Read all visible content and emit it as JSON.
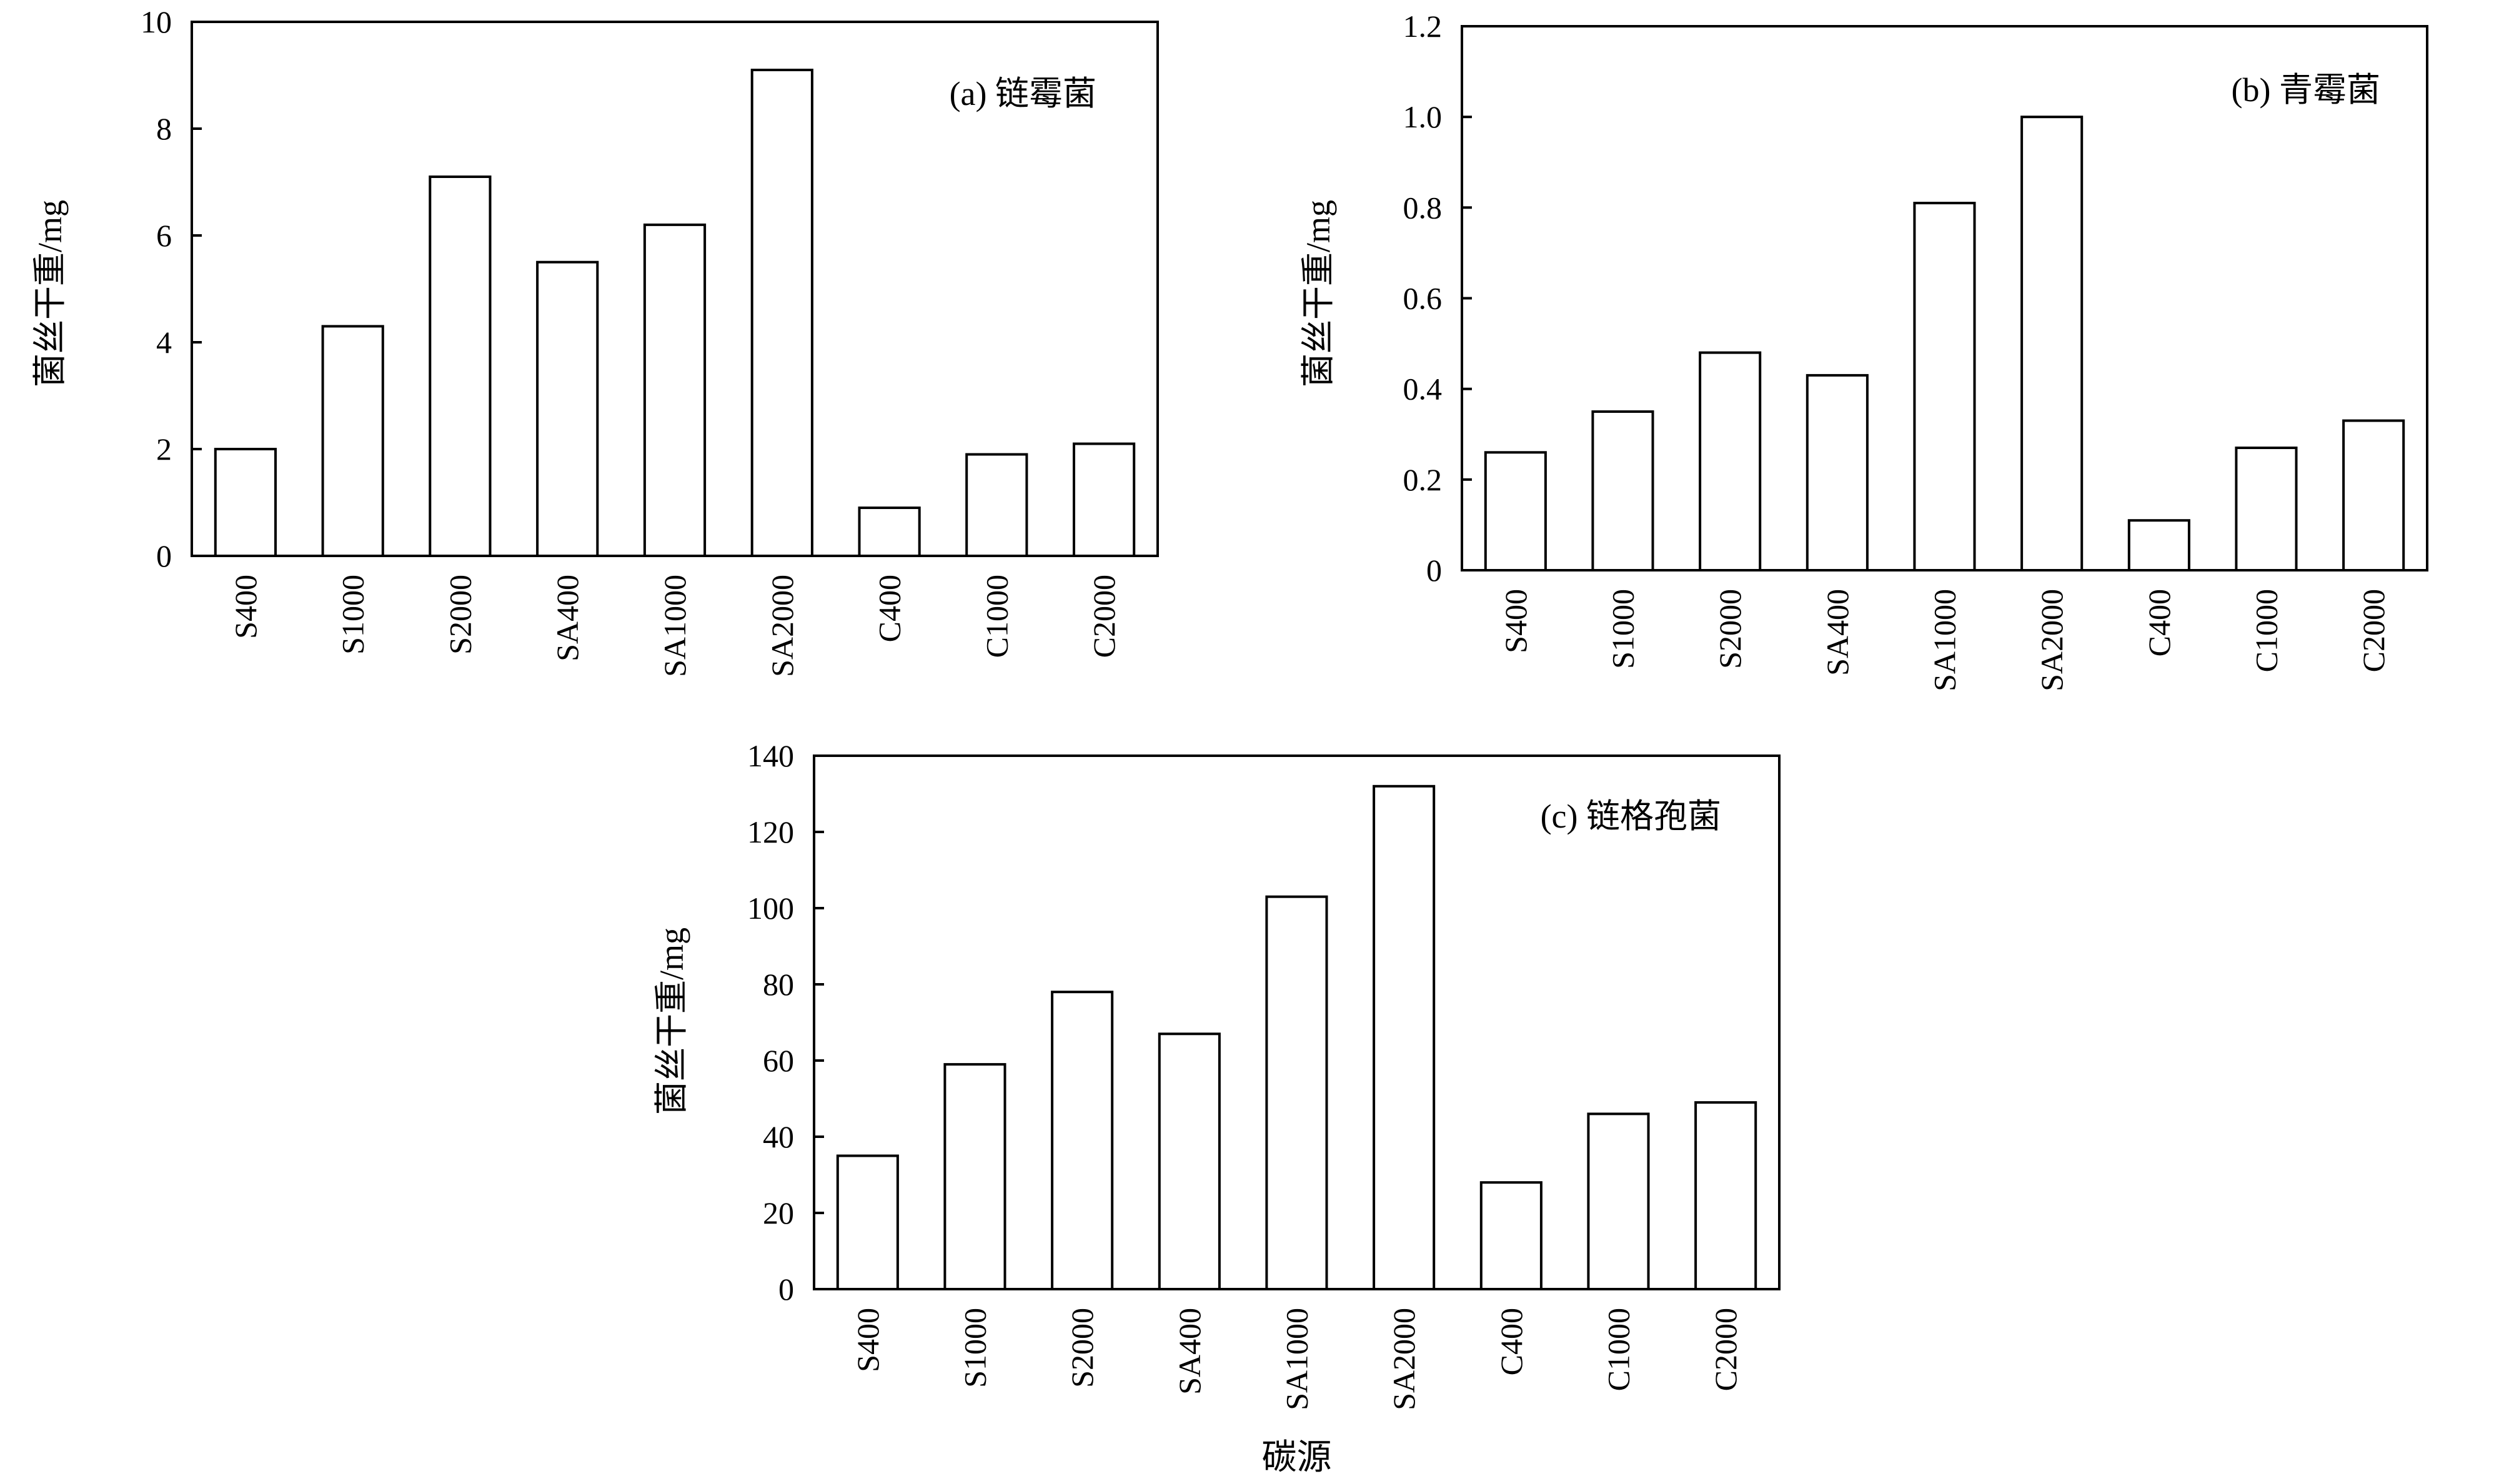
{
  "colors": {
    "bar_fill": "#ffffff",
    "bar_stroke": "#000000",
    "axis": "#000000",
    "background": "#ffffff"
  },
  "chart_data": [
    {
      "type": "bar",
      "title": "(a) 链霉菌",
      "ylabel": "菌丝干重/mg",
      "xlabel": "",
      "categories": [
        "S400",
        "S1000",
        "S2000",
        "SA400",
        "SA1000",
        "SA2000",
        "C400",
        "C1000",
        "C2000"
      ],
      "values": [
        2.0,
        4.3,
        7.1,
        5.5,
        6.2,
        9.1,
        0.9,
        1.9,
        2.1
      ],
      "ylim": [
        0,
        10
      ],
      "yticks": [
        0,
        2,
        4,
        6,
        8,
        10
      ],
      "ytick_labels": [
        "0",
        "2",
        "4",
        "6",
        "8",
        "10"
      ],
      "grid": false,
      "legend": "none"
    },
    {
      "type": "bar",
      "title": "(b) 青霉菌",
      "ylabel": "菌丝干重/mg",
      "xlabel": "",
      "categories": [
        "S400",
        "S1000",
        "S2000",
        "SA400",
        "SA1000",
        "SA2000",
        "C400",
        "C1000",
        "C2000"
      ],
      "values": [
        0.26,
        0.35,
        0.48,
        0.43,
        0.81,
        1.0,
        0.11,
        0.27,
        0.33
      ],
      "ylim": [
        0,
        1.2
      ],
      "yticks": [
        0,
        0.2,
        0.4,
        0.6,
        0.8,
        1.0,
        1.2
      ],
      "ytick_labels": [
        "0",
        "0.2",
        "0.4",
        "0.6",
        "0.8",
        "1.0",
        "1.2"
      ],
      "grid": false,
      "legend": "none"
    },
    {
      "type": "bar",
      "title": "(c) 链格孢菌",
      "ylabel": "菌丝干重/mg",
      "xlabel": "碳源",
      "categories": [
        "S400",
        "S1000",
        "S2000",
        "SA400",
        "SA1000",
        "SA2000",
        "C400",
        "C1000",
        "C2000"
      ],
      "values": [
        35,
        59,
        78,
        67,
        103,
        132,
        28,
        46,
        49
      ],
      "ylim": [
        0,
        140
      ],
      "yticks": [
        0,
        20,
        40,
        60,
        80,
        100,
        120,
        140
      ],
      "ytick_labels": [
        "0",
        "20",
        "40",
        "60",
        "80",
        "100",
        "120",
        "140"
      ],
      "grid": false,
      "legend": "none"
    }
  ]
}
